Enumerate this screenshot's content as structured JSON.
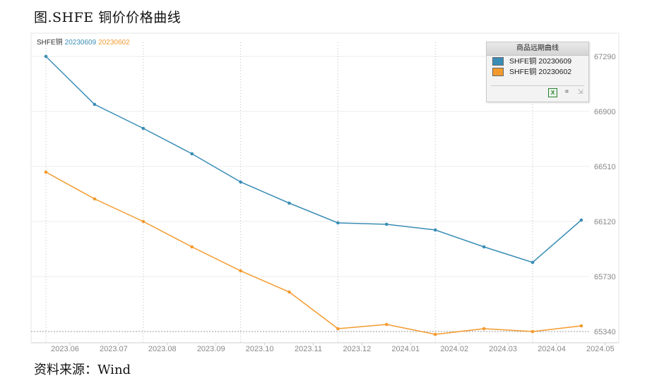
{
  "figure": {
    "title": "图.SHFE 铜价价格曲线",
    "source": "资料来源：Wind"
  },
  "legend_top": {
    "prefix": "SHFE铜",
    "series_a": "20230609",
    "series_b": "20230602"
  },
  "popup": {
    "header": "商品远期曲线",
    "items": [
      "SHFE铜 20230609",
      "SHFE铜 20230602"
    ],
    "tools": [
      "excel-export-icon",
      "crop-icon",
      "expand-icon"
    ]
  },
  "colors": {
    "series_a": "#3a8db5",
    "series_b": "#f39a2e"
  },
  "chart_data": {
    "type": "line",
    "x": [
      "2023.06",
      "2023.07",
      "2023.08",
      "2023.09",
      "2023.10",
      "2023.11",
      "2023.12",
      "2024.01",
      "2024.02",
      "2024.03",
      "2024.04",
      "2024.05"
    ],
    "x_tick_labels": [
      "2023.06",
      "2023.07",
      "2023.08",
      "2023.09",
      "2023.10",
      "2023.11",
      "2023.12",
      "2024.01",
      "2024.02",
      "2024.03",
      "2024.04",
      "2024.05"
    ],
    "y_ticks": [
      65340,
      65730,
      66120,
      66510,
      66900,
      67290
    ],
    "ylim": [
      65280,
      67350
    ],
    "grid": true,
    "y_axis_side": "right",
    "series": [
      {
        "name": "SHFE铜 20230609",
        "values": [
          67290,
          66950,
          66780,
          66600,
          66400,
          66250,
          66110,
          66100,
          66060,
          65940,
          65830,
          66130
        ]
      },
      {
        "name": "SHFE铜 20230602",
        "values": [
          66470,
          66280,
          66120,
          65940,
          65770,
          65620,
          65360,
          65390,
          65320,
          65360,
          65340,
          65380
        ]
      }
    ]
  }
}
